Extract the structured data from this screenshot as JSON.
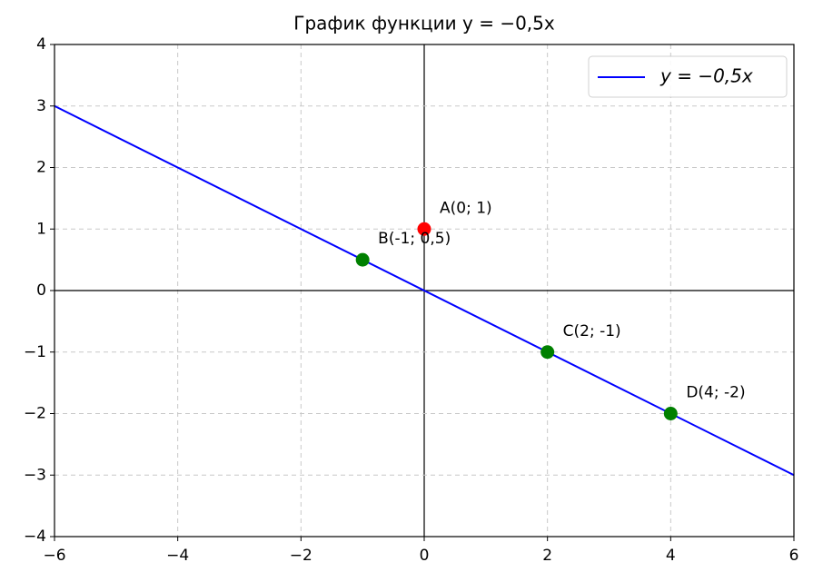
{
  "chart_data": {
    "type": "line",
    "title": "График функции y = −0,5x",
    "series": [
      {
        "name": "y = −0,5x",
        "color": "#0000ff",
        "x": [
          -6,
          6
        ],
        "values": [
          3,
          -3
        ]
      }
    ],
    "points": [
      {
        "label": "A(0; 1)",
        "x": 0,
        "y": 1,
        "color": "#ff0000"
      },
      {
        "label": "B(-1; 0,5)",
        "x": -1,
        "y": 0.5,
        "color": "#008000"
      },
      {
        "label": "C(2; -1)",
        "x": 2,
        "y": -1,
        "color": "#008000"
      },
      {
        "label": "D(4; -2)",
        "x": 4,
        "y": -2,
        "color": "#008000"
      }
    ],
    "xlim": [
      -6,
      6
    ],
    "ylim": [
      -4,
      4
    ],
    "xticks": [
      {
        "value": -6,
        "label": "−6"
      },
      {
        "value": -4,
        "label": "−4"
      },
      {
        "value": -2,
        "label": "−2"
      },
      0,
      2,
      4,
      6
    ],
    "yticks": [
      {
        "value": -4,
        "label": "−4"
      },
      {
        "value": -3,
        "label": "−3"
      },
      {
        "value": -2,
        "label": "−2"
      },
      {
        "value": -1,
        "label": "−1"
      },
      0,
      1,
      2,
      3,
      4
    ],
    "grid": true,
    "legend": "upper right"
  }
}
